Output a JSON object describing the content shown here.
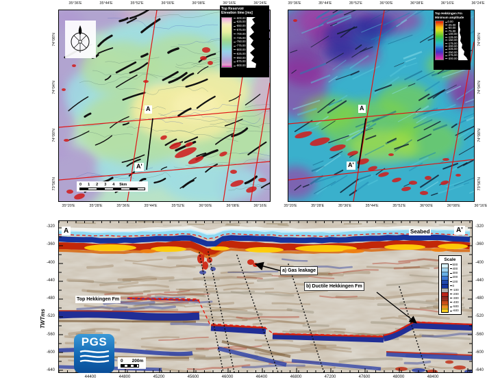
{
  "maps": {
    "left": {
      "top_axis": [
        "35°36'E",
        "35°44'E",
        "35°52'E",
        "36°00'E",
        "36°08'E",
        "36°16'E",
        "36°24'E"
      ],
      "bottom_axis": [
        "35°20'E",
        "35°28'E",
        "35°36'E",
        "35°44'E",
        "35°52'E",
        "36°00'E",
        "36°08'E",
        "36°16'E"
      ],
      "lat_axis": [
        "74°08'N",
        "74°04'N",
        "74°00'N",
        "73°56'N"
      ],
      "colorbar": {
        "title": [
          "Top Reservoir",
          "Elevation time [ms]"
        ],
        "ticks": [
          "-600.00",
          "-625.00",
          "-650.00",
          "-675.00",
          "-700.00",
          "-725.00",
          "-750.00",
          "-775.00",
          "-800.00",
          "-825.00",
          "-850.00",
          "-875.00",
          "-900.00"
        ]
      },
      "scalebar": {
        "numbers": [
          "0",
          "1",
          "2",
          "3",
          "4"
        ],
        "end": "5km"
      },
      "line_labels": {
        "start": "A",
        "end": "A'"
      }
    },
    "right": {
      "top_axis": [
        "35°36'E",
        "35°44'E",
        "35°52'E",
        "36°00'E",
        "36°08'E",
        "36°16'E",
        "36°24'E"
      ],
      "bottom_axis": [
        "35°20'E",
        "35°28'E",
        "35°36'E",
        "35°44'E",
        "35°52'E",
        "36°00'E",
        "36°08'E",
        "36°16'E"
      ],
      "lat_axis": [
        "74°08'N",
        "74°04'N",
        "74°00'N",
        "73°56'N"
      ],
      "colorbar": {
        "title": [
          "Top Hekkingen Fm",
          "Minimum amplitude"
        ],
        "ticks": [
          "0.00",
          "-25.00",
          "-50.00",
          "-75.00",
          "-100.00",
          "-125.00",
          "-150.00",
          "-175.00",
          "-200.00",
          "-225.00",
          "-250.00",
          "-275.00",
          "-300.00"
        ]
      },
      "line_labels": {
        "start": "A",
        "end": "A'"
      }
    }
  },
  "seismic": {
    "corner_labels": {
      "left": "A",
      "right": "A'"
    },
    "seabed_label": "Seabed",
    "y_axis": {
      "label": "TWTms",
      "ticks": [
        "-320",
        "-360",
        "-400",
        "-440",
        "-480",
        "-520",
        "-560",
        "-600",
        "-640"
      ]
    },
    "x_axis": {
      "ticks": [
        "44400",
        "44800",
        "45200",
        "45600",
        "46000",
        "46400",
        "46800",
        "47200",
        "47600",
        "48000",
        "48400"
      ]
    },
    "annotations": {
      "horizon": "Top Hekkingen Fm",
      "gas": "a) Gas leakage",
      "ductile": "b) Ductile Hekkingen Fm"
    },
    "scale": {
      "title": "Scale",
      "ticks": [
        "500",
        "400",
        "300",
        "200",
        "100",
        "0",
        "-100",
        "-200",
        "-300",
        "-400",
        "-500",
        "-600"
      ]
    },
    "logo_text": "PGS",
    "scalebar": {
      "zero": "0",
      "end": "200m"
    }
  },
  "colors": {
    "grid_line": "#e01414",
    "seabed_pick": "#ea1c10",
    "horizon_pick": "#ea1c10",
    "fault": "#111111",
    "band_blue": "#202e96",
    "band_red": "#c62410"
  }
}
